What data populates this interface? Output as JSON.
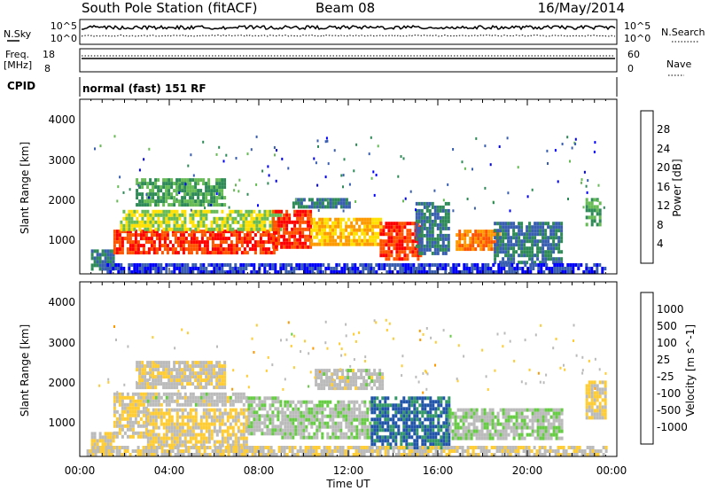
{
  "header": {
    "station": "South Pole Station (fitACF)",
    "beam": "Beam 08",
    "date": "16/May/2014"
  },
  "noise_panel": {
    "left_label": "N.Sky",
    "right_label": "N.Search",
    "left_ticks": [
      "10^5",
      "10^0"
    ],
    "right_ticks": [
      "10^5",
      "10^0"
    ]
  },
  "freq_panel": {
    "left_label_1": "Freq.",
    "left_label_2": "[MHz]",
    "left_ticks": [
      "18",
      "8"
    ],
    "right_label": "Nave",
    "right_ticks": [
      "60",
      "0"
    ]
  },
  "cpid_panel": {
    "label": "CPID",
    "mode_text": "normal (fast) 151 RF"
  },
  "colors": {
    "scale_power": [
      "#0000ff",
      "#3a5fb0",
      "#2e8b57",
      "#66bb55",
      "#ffe000",
      "#ff9900",
      "#ff5500",
      "#ff0000"
    ],
    "scale_velocity": [
      "#ff0000",
      "#ff4400",
      "#ff9900",
      "#ffcc33",
      "#bbbbbb",
      "#66cc44",
      "#339966",
      "#2255aa",
      "#1122cc"
    ]
  },
  "chart_data": [
    {
      "type": "heatmap",
      "title": "",
      "xlabel": "",
      "ylabel": "Slant Range [km]",
      "xlim": [
        "00:00",
        "24:00"
      ],
      "ylim": [
        180,
        4600
      ],
      "y_ticks": [
        "4000",
        "3000",
        "2000",
        "1000"
      ],
      "colorbar_label": "Power [dB]",
      "colorbar_ticks": [
        "28",
        "24",
        "20",
        "16",
        "12",
        "8",
        "4"
      ],
      "colorbar_range": [
        0,
        32
      ],
      "bands": [
        {
          "t0": 0.5,
          "t1": 1.5,
          "r0": 300,
          "r1": 800,
          "value": 8
        },
        {
          "t0": 1.5,
          "t1": 8.8,
          "r0": 700,
          "r1": 1300,
          "value": 28
        },
        {
          "t0": 1.8,
          "t1": 9.0,
          "r0": 1300,
          "r1": 1800,
          "value": 16
        },
        {
          "t0": 2.5,
          "t1": 6.5,
          "r0": 1900,
          "r1": 2600,
          "value": 12
        },
        {
          "t0": 8.6,
          "t1": 10.3,
          "r0": 900,
          "r1": 1800,
          "value": 28
        },
        {
          "t0": 10.3,
          "t1": 13.4,
          "r0": 900,
          "r1": 1600,
          "value": 20
        },
        {
          "t0": 9.5,
          "t1": 12.0,
          "r0": 1900,
          "r1": 2100,
          "value": 8
        },
        {
          "t0": 13.4,
          "t1": 15.2,
          "r0": 600,
          "r1": 1500,
          "value": 28
        },
        {
          "t0": 15.0,
          "t1": 16.5,
          "r0": 700,
          "r1": 2000,
          "value": 8
        },
        {
          "t0": 16.8,
          "t1": 18.8,
          "r0": 800,
          "r1": 1300,
          "value": 24
        },
        {
          "t0": 18.5,
          "t1": 21.5,
          "r0": 500,
          "r1": 1500,
          "value": 8
        },
        {
          "t0": 22.6,
          "t1": 23.3,
          "r0": 1400,
          "r1": 2100,
          "value": 12
        },
        {
          "t0": 1.2,
          "t1": 23.5,
          "r0": 200,
          "r1": 450,
          "value": 4
        }
      ]
    },
    {
      "type": "heatmap",
      "title": "",
      "xlabel": "Time UT",
      "ylabel": "Slant Range [km]",
      "xlim": [
        "00:00",
        "24:00"
      ],
      "ylim": [
        180,
        4600
      ],
      "x_ticks": [
        "00:00",
        "04:00",
        "08:00",
        "12:00",
        "16:00",
        "20:00",
        "00:00"
      ],
      "y_ticks": [
        "4000",
        "3000",
        "2000",
        "1000"
      ],
      "colorbar_label": "Velocity [m s^-1]",
      "colorbar_ticks": [
        "1000",
        "500",
        "100",
        "25",
        "-25",
        "-100",
        "-500",
        "-1000"
      ],
      "colorbar_range": [
        -1200,
        1200
      ],
      "bands": [
        {
          "t0": 0.5,
          "t1": 1.5,
          "r0": 300,
          "r1": 800,
          "value": -150
        },
        {
          "t0": 1.5,
          "t1": 3.0,
          "r0": 700,
          "r1": 1800,
          "value": -100
        },
        {
          "t0": 3.0,
          "t1": 7.5,
          "r0": 500,
          "r1": 1400,
          "value": -150
        },
        {
          "t0": 3.0,
          "t1": 7.5,
          "r0": 1500,
          "r1": 1800,
          "value": 0
        },
        {
          "t0": 2.5,
          "t1": 6.5,
          "r0": 1900,
          "r1": 2600,
          "value": -100
        },
        {
          "t0": 7.5,
          "t1": 9.0,
          "r0": 800,
          "r1": 1700,
          "value": 60
        },
        {
          "t0": 9.0,
          "t1": 13.0,
          "r0": 700,
          "r1": 1600,
          "value": 80
        },
        {
          "t0": 10.5,
          "t1": 13.5,
          "r0": 1900,
          "r1": 2400,
          "value": 0
        },
        {
          "t0": 13.0,
          "t1": 16.5,
          "r0": 400,
          "r1": 1700,
          "value": 700
        },
        {
          "t0": 16.5,
          "t1": 21.5,
          "r0": 600,
          "r1": 1400,
          "value": 90
        },
        {
          "t0": 22.6,
          "t1": 23.5,
          "r0": 1200,
          "r1": 2100,
          "value": -150
        },
        {
          "t0": 0.3,
          "t1": 23.5,
          "r0": 200,
          "r1": 450,
          "value": -100
        }
      ]
    }
  ]
}
